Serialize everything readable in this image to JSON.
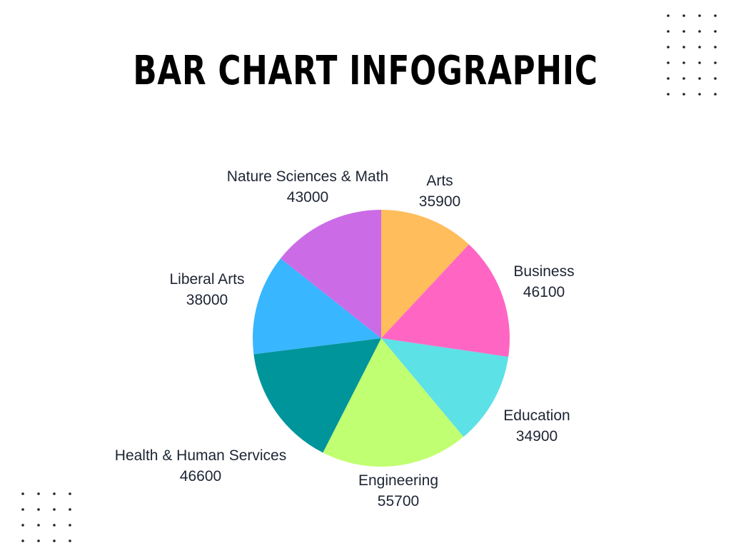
{
  "title": "BAR CHART INFOGRAPHIC",
  "chart_data": {
    "type": "pie",
    "title": "BAR CHART INFOGRAPHIC",
    "start": "12 o'clock",
    "direction": "clockwise",
    "slices": [
      {
        "label": "Arts",
        "value": 35900,
        "value_label": "35900",
        "color": "#FFBD5C"
      },
      {
        "label": "Business",
        "value": 46100,
        "value_label": "46100",
        "color": "#FF66C4"
      },
      {
        "label": "Education",
        "value": 34900,
        "value_label": "34900",
        "color": "#5CE1E6"
      },
      {
        "label": "Engineering",
        "value": 55700,
        "value_label": "55700",
        "color": "#C1FF72"
      },
      {
        "label": "Health & Human Services",
        "value": 46600,
        "value_label": "46600",
        "color": "#00959A"
      },
      {
        "label": "Liberal Arts",
        "value": 38000,
        "value_label": "38000",
        "color": "#38B6FF"
      },
      {
        "label": "Nature Sciences & Math",
        "value": 43000,
        "value_label": "43000",
        "color": "#CB6CE6"
      }
    ]
  },
  "decor": {
    "dot_color": "#1d2433"
  }
}
